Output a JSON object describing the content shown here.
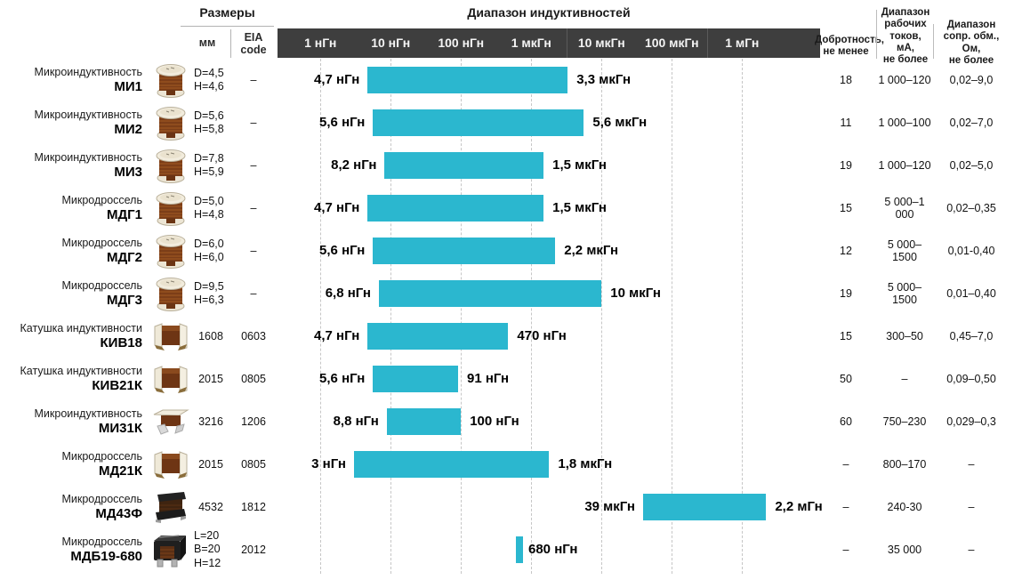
{
  "header": {
    "sizes_title": "Размеры",
    "range_title": "Диапазон индуктивностей",
    "col_mm": "мм",
    "col_eia": "EIA\ncode",
    "col_q": "Добротность,\nне менее",
    "col_current": "Диапазон\nрабочих\nтоков,\nмА,\nне более",
    "col_resistance": "Диапазон\nсопр. обм.,\nОм,\nне более"
  },
  "colors": {
    "bar": "#2bb7cf",
    "scale_bar_bg": "#3e3e3e",
    "scale_text": "#f4f4f4"
  },
  "chart_data": {
    "type": "bar",
    "subtype": "horizontal-log-range",
    "unit_base": "нГн",
    "title": "Диапазон индуктивностей",
    "axis": {
      "scale": "log10",
      "log_offset": 0.61,
      "log_span": 7.72,
      "decades": [
        {
          "label": "1 нГн",
          "log": 0
        },
        {
          "label": "10 нГн",
          "log": 1
        },
        {
          "label": "100 нГн",
          "log": 2
        },
        {
          "label": "1 мкГн",
          "log": 3
        },
        {
          "label": "10 мкГн",
          "log": 4
        },
        {
          "label": "100 мкГн",
          "log": 5
        },
        {
          "label": "1 мГн",
          "log": 6
        }
      ],
      "separators_log": [
        3.5,
        5.5
      ],
      "grid": true
    },
    "rows": [
      {
        "type": "Микроиндуктивность",
        "name": "МИ1",
        "mm": "D=4,5\nH=4,6",
        "eia": "–",
        "min_nh": 4.7,
        "max_nh": 3300,
        "min_label": "4,7 нГн",
        "max_label": "3,3 мкГн",
        "q": "18",
        "current": "1 000–120",
        "resistance": "0,02–9,0",
        "image": "coil"
      },
      {
        "type": "Микроиндуктивность",
        "name": "МИ2",
        "mm": "D=5,6\nH=5,8",
        "eia": "–",
        "min_nh": 5.6,
        "max_nh": 5600,
        "min_label": "5,6 нГн",
        "max_label": "5,6 мкГн",
        "q": "11",
        "current": "1 000–100",
        "resistance": "0,02–7,0",
        "image": "coil"
      },
      {
        "type": "Микроиндуктивность",
        "name": "МИ3",
        "mm": "D=7,8\nH=5,9",
        "eia": "–",
        "min_nh": 8.2,
        "max_nh": 1500,
        "min_label": "8,2 нГн",
        "max_label": "1,5 мкГн",
        "q": "19",
        "current": "1 000–120",
        "resistance": "0,02–5,0",
        "image": "coil"
      },
      {
        "type": "Микродроссель",
        "name": "МДГ1",
        "mm": "D=5,0\nH=4,8",
        "eia": "–",
        "min_nh": 4.7,
        "max_nh": 1500,
        "min_label": "4,7 нГн",
        "max_label": "1,5 мкГн",
        "q": "15",
        "current": "5 000–1 000",
        "resistance": "0,02–0,35",
        "image": "coil"
      },
      {
        "type": "Микродроссель",
        "name": "МДГ2",
        "mm": "D=6,0\nH=6,0",
        "eia": "–",
        "min_nh": 5.6,
        "max_nh": 2200,
        "min_label": "5,6 нГн",
        "max_label": "2,2 мкГн",
        "q": "12",
        "current": "5 000–1500",
        "resistance": "0,01-0,40",
        "image": "coil"
      },
      {
        "type": "Микродроссель",
        "name": "МДГ3",
        "mm": "D=9,5\nH=6,3",
        "eia": "–",
        "min_nh": 6.8,
        "max_nh": 10000,
        "min_label": "6,8 нГн",
        "max_label": "10 мкГн",
        "q": "19",
        "current": "5 000–1500",
        "resistance": "0,01–0,40",
        "image": "coil"
      },
      {
        "type": "Катушка индуктивности",
        "name": "КИВ18",
        "mm": "1608",
        "eia": "0603",
        "min_nh": 4.7,
        "max_nh": 470,
        "min_label": "4,7 нГн",
        "max_label": "470 нГн",
        "q": "15",
        "current": "300–50",
        "resistance": "0,45–7,0",
        "image": "chip"
      },
      {
        "type": "Катушка индуктивности",
        "name": "КИВ21К",
        "mm": "2015",
        "eia": "0805",
        "min_nh": 5.6,
        "max_nh": 91,
        "min_label": "5,6 нГн",
        "max_label": "91 нГн",
        "q": "50",
        "current": "–",
        "resistance": "0,09–0,50",
        "image": "chip"
      },
      {
        "type": "Микроиндуктивность",
        "name": "МИ31К",
        "mm": "3216",
        "eia": "1206",
        "min_nh": 8.8,
        "max_nh": 100,
        "min_label": "8,8 нГн",
        "max_label": "100 нГн",
        "q": "60",
        "current": "750–230",
        "resistance": "0,029–0,3",
        "image": "chip-flat"
      },
      {
        "type": "Микродроссель",
        "name": "МД21К",
        "mm": "2015",
        "eia": "0805",
        "min_nh": 3,
        "max_nh": 1800,
        "min_label": "3 нГн",
        "max_label": "1,8 мкГн",
        "q": "–",
        "current": "800–170",
        "resistance": "–",
        "image": "chip"
      },
      {
        "type": "Микродроссель",
        "name": "МД43Ф",
        "mm": "4532",
        "eia": "1812",
        "min_nh": 39000,
        "max_nh": 2200000,
        "min_label": "39 мкГн",
        "max_label": "2,2 мГн",
        "q": "–",
        "current": "240-30",
        "resistance": "–",
        "image": "black-block"
      },
      {
        "type": "Микродроссель",
        "name": "МДБ19-680",
        "mm": "L=20\nB=20\nH=12",
        "eia": "2012",
        "min_nh": 680,
        "max_nh": 680,
        "min_label": null,
        "max_label": "680 нГн",
        "q": "–",
        "current": "35 000",
        "resistance": "–",
        "image": "black-shield"
      }
    ]
  }
}
